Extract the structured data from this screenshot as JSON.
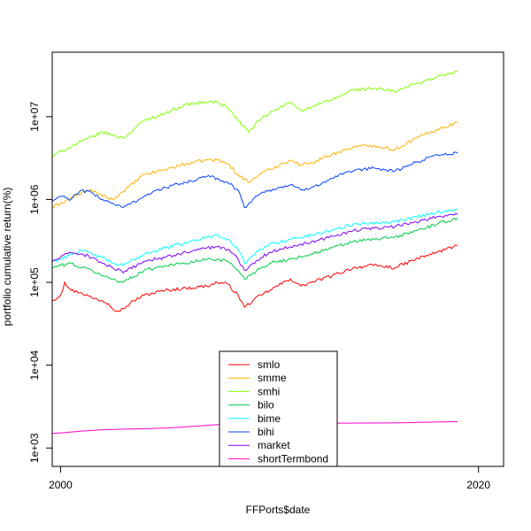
{
  "chart_data": {
    "type": "line",
    "title": "",
    "xlabel": "FFPorts$date",
    "ylabel": "portfolio cumulative return(%)",
    "x_range": [
      1999.6,
      2021.2
    ],
    "ylim": [
      600,
      60000000
    ],
    "log_y": true,
    "grid": false,
    "legend_position": "bottom-center",
    "x_ticks": [
      {
        "value": 2000,
        "label": "2000"
      },
      {
        "value": 2020,
        "label": "2020"
      }
    ],
    "y_ticks": [
      {
        "value": 1000,
        "label": "1e+03"
      },
      {
        "value": 10000,
        "label": "1e+04"
      },
      {
        "value": 100000,
        "label": "1e+05"
      },
      {
        "value": 1000000,
        "label": "1e+06"
      },
      {
        "value": 10000000,
        "label": "1e+07"
      }
    ],
    "series": [
      {
        "name": "smlo",
        "color": "#ff0000",
        "x": [
          1999.6,
          2000.0,
          2000.2,
          2000.5,
          2001.0,
          2001.5,
          2002.0,
          2002.3,
          2002.7,
          2003.0,
          2003.5,
          2004.0,
          2005.0,
          2006.0,
          2007.0,
          2007.5,
          2008.0,
          2008.5,
          2008.8,
          2009.2,
          2009.6,
          2010.0,
          2011.0,
          2011.5,
          2012.0,
          2013.0,
          2014.0,
          2015.0,
          2016.0,
          2017.0,
          2018.0,
          2018.8,
          2019.0
        ],
        "y": [
          60000,
          70000,
          100000,
          80000,
          75000,
          65000,
          60000,
          55000,
          45000,
          48000,
          60000,
          70000,
          80000,
          85000,
          90000,
          100000,
          95000,
          70000,
          50000,
          60000,
          70000,
          80000,
          110000,
          90000,
          100000,
          120000,
          150000,
          160000,
          150000,
          190000,
          230000,
          270000,
          280000
        ]
      },
      {
        "name": "smme",
        "color": "#ffb000",
        "x": [
          1999.6,
          2000.0,
          2001.0,
          2001.5,
          2002.0,
          2002.5,
          2003.0,
          2004.0,
          2005.0,
          2006.0,
          2007.0,
          2007.5,
          2008.0,
          2008.5,
          2009.0,
          2009.5,
          2010.0,
          2011.0,
          2011.5,
          2012.0,
          2013.0,
          2014.0,
          2015.0,
          2016.0,
          2017.0,
          2018.0,
          2019.0
        ],
        "y": [
          800000,
          900000,
          1200000,
          1300000,
          1100000,
          1000000,
          1250000,
          2000000,
          2300000,
          2700000,
          3000000,
          3000000,
          2700000,
          2000000,
          1600000,
          2000000,
          2300000,
          3000000,
          2600000,
          2800000,
          3500000,
          4300000,
          4500000,
          4000000,
          5500000,
          7000000,
          8500000
        ]
      },
      {
        "name": "smhi",
        "color": "#80ff00",
        "x": [
          1999.6,
          2000.0,
          2001.0,
          2002.0,
          2002.5,
          2003.0,
          2004.0,
          2005.0,
          2006.0,
          2007.0,
          2007.5,
          2008.0,
          2008.5,
          2009.0,
          2009.5,
          2010.0,
          2011.0,
          2011.5,
          2012.0,
          2013.0,
          2014.0,
          2015.0,
          2016.0,
          2017.0,
          2018.0,
          2019.0
        ],
        "y": [
          3300000,
          3800000,
          5000000,
          6500000,
          6000000,
          5500000,
          9000000,
          11000000,
          14000000,
          15000000,
          15000000,
          13000000,
          9000000,
          6500000,
          9000000,
          11000000,
          15000000,
          12000000,
          13000000,
          16000000,
          21000000,
          22000000,
          20000000,
          25000000,
          30000000,
          35000000
        ]
      },
      {
        "name": "bilo",
        "color": "#00cc44",
        "x": [
          1999.6,
          2000.0,
          2000.5,
          2001.0,
          2001.5,
          2002.0,
          2002.5,
          2003.0,
          2004.0,
          2005.0,
          2006.0,
          2007.0,
          2007.5,
          2008.0,
          2008.5,
          2008.8,
          2009.2,
          2009.6,
          2010.0,
          2011.0,
          2012.0,
          2013.0,
          2014.0,
          2015.0,
          2016.0,
          2017.0,
          2018.0,
          2019.0
        ],
        "y": [
          150000,
          160000,
          170000,
          150000,
          140000,
          120000,
          110000,
          100000,
          140000,
          160000,
          170000,
          190000,
          190000,
          180000,
          140000,
          110000,
          130000,
          150000,
          170000,
          190000,
          220000,
          260000,
          310000,
          330000,
          350000,
          420000,
          500000,
          600000
        ]
      },
      {
        "name": "bime",
        "color": "#00ffff",
        "x": [
          1999.6,
          2000.0,
          2000.5,
          2001.0,
          2001.5,
          2002.0,
          2002.5,
          2003.0,
          2004.0,
          2005.0,
          2006.0,
          2007.0,
          2007.5,
          2008.0,
          2008.5,
          2008.8,
          2009.2,
          2009.6,
          2010.0,
          2011.0,
          2012.0,
          2013.0,
          2014.0,
          2015.0,
          2016.0,
          2017.0,
          2018.0,
          2019.0
        ],
        "y": [
          180000,
          190000,
          220000,
          240000,
          220000,
          200000,
          170000,
          160000,
          220000,
          260000,
          300000,
          350000,
          380000,
          330000,
          250000,
          170000,
          210000,
          250000,
          290000,
          330000,
          370000,
          430000,
          500000,
          530000,
          540000,
          620000,
          700000,
          760000
        ]
      },
      {
        "name": "bihi",
        "color": "#0040ff",
        "x": [
          1999.6,
          2000.0,
          2000.5,
          2001.0,
          2001.5,
          2002.0,
          2002.5,
          2003.0,
          2004.0,
          2005.0,
          2006.0,
          2007.0,
          2007.5,
          2008.0,
          2008.5,
          2008.8,
          2009.2,
          2009.6,
          2010.0,
          2011.0,
          2011.5,
          2012.0,
          2013.0,
          2014.0,
          2015.0,
          2016.0,
          2017.0,
          2018.0,
          2019.0
        ],
        "y": [
          950000,
          1100000,
          1000000,
          1300000,
          1200000,
          1000000,
          900000,
          800000,
          1100000,
          1400000,
          1600000,
          1900000,
          1800000,
          1600000,
          1300000,
          800000,
          1000000,
          1200000,
          1300000,
          1500000,
          1300000,
          1400000,
          1800000,
          2200000,
          2400000,
          2200000,
          2800000,
          3500000,
          3600000
        ]
      },
      {
        "name": "market",
        "color": "#8000ff",
        "x": [
          1999.6,
          2000.0,
          2000.5,
          2001.0,
          2001.5,
          2002.0,
          2002.5,
          2003.0,
          2004.0,
          2005.0,
          2006.0,
          2007.0,
          2007.5,
          2008.0,
          2008.5,
          2008.8,
          2009.2,
          2009.6,
          2010.0,
          2011.0,
          2012.0,
          2013.0,
          2014.0,
          2015.0,
          2016.0,
          2017.0,
          2018.0,
          2019.0
        ],
        "y": [
          180000,
          200000,
          230000,
          220000,
          200000,
          170000,
          150000,
          130000,
          180000,
          200000,
          230000,
          260000,
          270000,
          250000,
          190000,
          140000,
          170000,
          200000,
          230000,
          270000,
          310000,
          360000,
          420000,
          450000,
          470000,
          540000,
          620000,
          660000
        ]
      },
      {
        "name": "shortTermbond",
        "color": "#ff00cc",
        "x": [
          1999.6,
          2000.0,
          2001.0,
          2002.0,
          2003.0,
          2004.0,
          2005.0,
          2006.0,
          2007.0,
          2008.0,
          2009.0,
          2010.0,
          2012.0,
          2014.0,
          2016.0,
          2018.0,
          2019.0
        ],
        "y": [
          1500,
          1520,
          1600,
          1660,
          1690,
          1710,
          1740,
          1800,
          1880,
          1950,
          1980,
          1990,
          2000,
          2000,
          2010,
          2060,
          2080
        ]
      }
    ]
  }
}
